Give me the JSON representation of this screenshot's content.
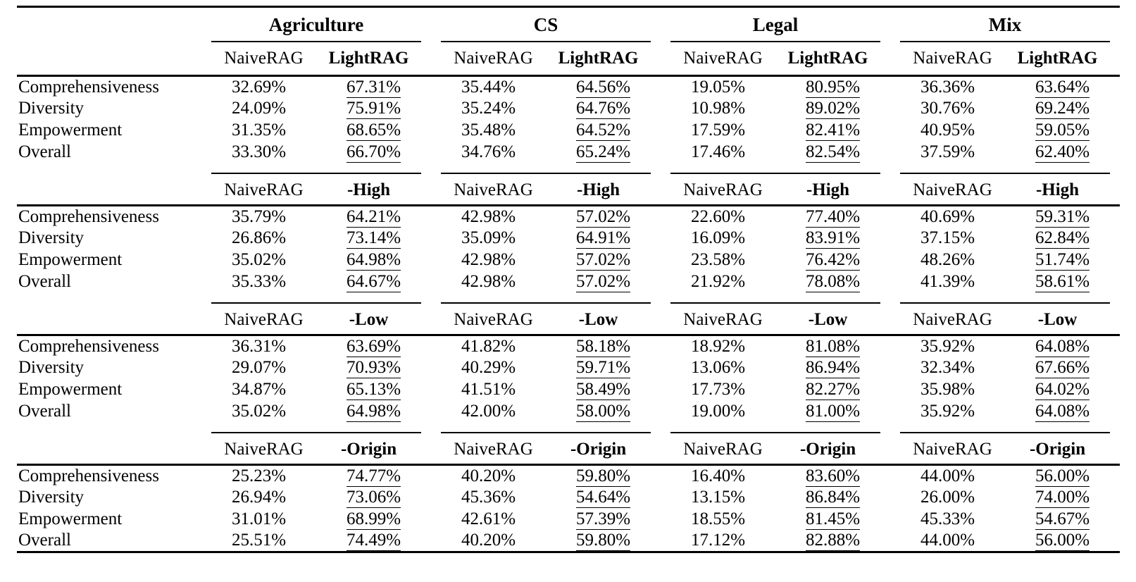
{
  "table": {
    "groups": [
      {
        "label": "Agriculture"
      },
      {
        "label": "CS"
      },
      {
        "label": "Legal"
      },
      {
        "label": "Mix"
      }
    ],
    "sections": [
      {
        "baseline_header": "NaiveRAG",
        "variant_header": "LightRAG",
        "rows": [
          {
            "metric": "Comprehensiveness",
            "cells": [
              {
                "baseline": "32.69%",
                "variant": "67.31%"
              },
              {
                "baseline": "35.44%",
                "variant": "64.56%"
              },
              {
                "baseline": "19.05%",
                "variant": "80.95%"
              },
              {
                "baseline": "36.36%",
                "variant": "63.64%"
              }
            ]
          },
          {
            "metric": "Diversity",
            "cells": [
              {
                "baseline": "24.09%",
                "variant": "75.91%"
              },
              {
                "baseline": "35.24%",
                "variant": "64.76%"
              },
              {
                "baseline": "10.98%",
                "variant": "89.02%"
              },
              {
                "baseline": "30.76%",
                "variant": "69.24%"
              }
            ]
          },
          {
            "metric": "Empowerment",
            "cells": [
              {
                "baseline": "31.35%",
                "variant": "68.65%"
              },
              {
                "baseline": "35.48%",
                "variant": "64.52%"
              },
              {
                "baseline": "17.59%",
                "variant": "82.41%"
              },
              {
                "baseline": "40.95%",
                "variant": "59.05%"
              }
            ]
          },
          {
            "metric": "Overall",
            "cells": [
              {
                "baseline": "33.30%",
                "variant": "66.70%"
              },
              {
                "baseline": "34.76%",
                "variant": "65.24%"
              },
              {
                "baseline": "17.46%",
                "variant": "82.54%"
              },
              {
                "baseline": "37.59%",
                "variant": "62.40%"
              }
            ]
          }
        ]
      },
      {
        "baseline_header": "NaiveRAG",
        "variant_header": "-High",
        "rows": [
          {
            "metric": "Comprehensiveness",
            "cells": [
              {
                "baseline": "35.79%",
                "variant": "64.21%"
              },
              {
                "baseline": "42.98%",
                "variant": "57.02%"
              },
              {
                "baseline": "22.60%",
                "variant": "77.40%"
              },
              {
                "baseline": "40.69%",
                "variant": "59.31%"
              }
            ]
          },
          {
            "metric": "Diversity",
            "cells": [
              {
                "baseline": "26.86%",
                "variant": "73.14%"
              },
              {
                "baseline": "35.09%",
                "variant": "64.91%"
              },
              {
                "baseline": "16.09%",
                "variant": "83.91%"
              },
              {
                "baseline": "37.15%",
                "variant": "62.84%"
              }
            ]
          },
          {
            "metric": "Empowerment",
            "cells": [
              {
                "baseline": "35.02%",
                "variant": "64.98%"
              },
              {
                "baseline": "42.98%",
                "variant": "57.02%"
              },
              {
                "baseline": "23.58%",
                "variant": "76.42%"
              },
              {
                "baseline": "48.26%",
                "variant": "51.74%"
              }
            ]
          },
          {
            "metric": "Overall",
            "cells": [
              {
                "baseline": "35.33%",
                "variant": "64.67%"
              },
              {
                "baseline": "42.98%",
                "variant": "57.02%"
              },
              {
                "baseline": "21.92%",
                "variant": "78.08%"
              },
              {
                "baseline": "41.39%",
                "variant": "58.61%"
              }
            ]
          }
        ]
      },
      {
        "baseline_header": "NaiveRAG",
        "variant_header": "-Low",
        "rows": [
          {
            "metric": "Comprehensiveness",
            "cells": [
              {
                "baseline": "36.31%",
                "variant": "63.69%"
              },
              {
                "baseline": "41.82%",
                "variant": "58.18%"
              },
              {
                "baseline": "18.92%",
                "variant": "81.08%"
              },
              {
                "baseline": "35.92%",
                "variant": "64.08%"
              }
            ]
          },
          {
            "metric": "Diversity",
            "cells": [
              {
                "baseline": "29.07%",
                "variant": "70.93%"
              },
              {
                "baseline": "40.29%",
                "variant": "59.71%"
              },
              {
                "baseline": "13.06%",
                "variant": "86.94%"
              },
              {
                "baseline": "32.34%",
                "variant": "67.66%"
              }
            ]
          },
          {
            "metric": "Empowerment",
            "cells": [
              {
                "baseline": "34.87%",
                "variant": "65.13%"
              },
              {
                "baseline": "41.51%",
                "variant": "58.49%"
              },
              {
                "baseline": "17.73%",
                "variant": "82.27%"
              },
              {
                "baseline": "35.98%",
                "variant": "64.02%"
              }
            ]
          },
          {
            "metric": "Overall",
            "cells": [
              {
                "baseline": "35.02%",
                "variant": "64.98%"
              },
              {
                "baseline": "42.00%",
                "variant": "58.00%"
              },
              {
                "baseline": "19.00%",
                "variant": "81.00%"
              },
              {
                "baseline": "35.92%",
                "variant": "64.08%"
              }
            ]
          }
        ]
      },
      {
        "baseline_header": "NaiveRAG",
        "variant_header": "-Origin",
        "rows": [
          {
            "metric": "Comprehensiveness",
            "cells": [
              {
                "baseline": "25.23%",
                "variant": "74.77%"
              },
              {
                "baseline": "40.20%",
                "variant": "59.80%"
              },
              {
                "baseline": "16.40%",
                "variant": "83.60%"
              },
              {
                "baseline": "44.00%",
                "variant": "56.00%"
              }
            ]
          },
          {
            "metric": "Diversity",
            "cells": [
              {
                "baseline": "26.94%",
                "variant": "73.06%"
              },
              {
                "baseline": "45.36%",
                "variant": "54.64%"
              },
              {
                "baseline": "13.15%",
                "variant": "86.84%"
              },
              {
                "baseline": "26.00%",
                "variant": "74.00%"
              }
            ]
          },
          {
            "metric": "Empowerment",
            "cells": [
              {
                "baseline": "31.01%",
                "variant": "68.99%"
              },
              {
                "baseline": "42.61%",
                "variant": "57.39%"
              },
              {
                "baseline": "18.55%",
                "variant": "81.45%"
              },
              {
                "baseline": "45.33%",
                "variant": "54.67%"
              }
            ]
          },
          {
            "metric": "Overall",
            "cells": [
              {
                "baseline": "25.51%",
                "variant": "74.49%"
              },
              {
                "baseline": "40.20%",
                "variant": "59.80%"
              },
              {
                "baseline": "17.12%",
                "variant": "82.88%"
              },
              {
                "baseline": "44.00%",
                "variant": "56.00%"
              }
            ]
          }
        ]
      }
    ]
  }
}
